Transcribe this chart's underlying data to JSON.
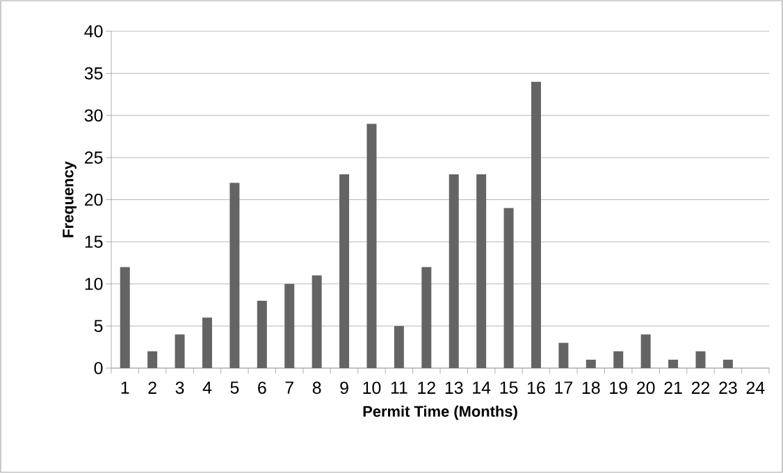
{
  "chart_data": {
    "type": "bar",
    "xlabel": "Permit Time (Months)",
    "ylabel": "Frequency",
    "categories": [
      "1",
      "2",
      "3",
      "4",
      "5",
      "6",
      "7",
      "8",
      "9",
      "10",
      "11",
      "12",
      "13",
      "14",
      "15",
      "16",
      "17",
      "18",
      "19",
      "20",
      "21",
      "22",
      "23",
      "24"
    ],
    "values": [
      12,
      2,
      4,
      6,
      22,
      8,
      10,
      11,
      23,
      29,
      5,
      12,
      23,
      23,
      19,
      34,
      3,
      1,
      2,
      4,
      1,
      2,
      1,
      0
    ],
    "color": "#646464",
    "ylim": [
      0,
      40
    ],
    "yticks": [
      0,
      5,
      10,
      15,
      20,
      25,
      30,
      35,
      40
    ],
    "grid": "y"
  }
}
